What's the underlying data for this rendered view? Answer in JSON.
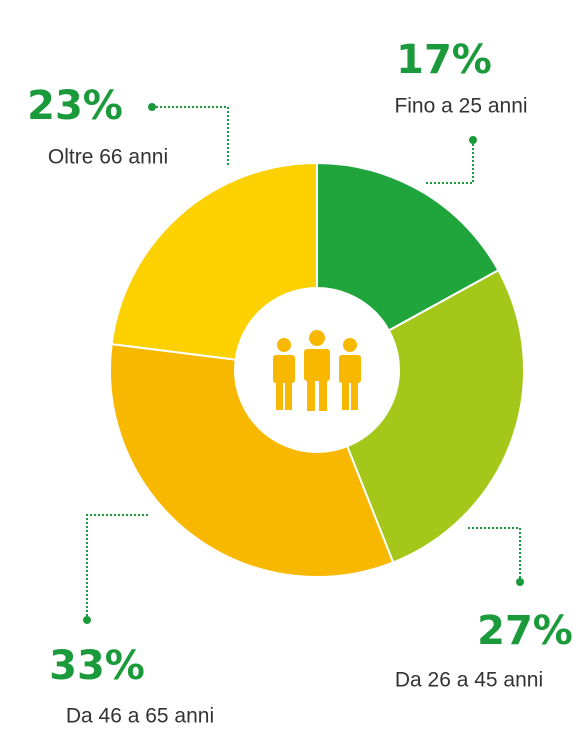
{
  "chart_data": {
    "type": "donut",
    "categories": [
      "Fino a 25 anni",
      "Da 26 a 45 anni",
      "Da 46 a 65 anni",
      "Oltre 66 anni"
    ],
    "values": [
      17,
      27,
      33,
      23
    ],
    "value_labels": [
      "17%",
      "27%",
      "33%",
      "23%"
    ],
    "colors": [
      "#1fa53b",
      "#a5c71a",
      "#f9b800",
      "#fdd000"
    ]
  }
}
